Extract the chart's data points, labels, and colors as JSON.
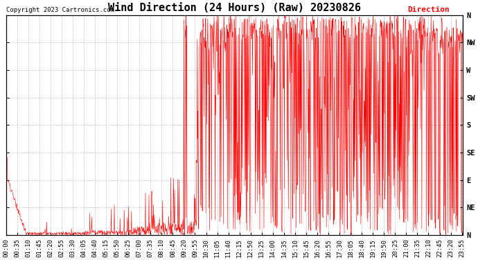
{
  "title": "Wind Direction (24 Hours) (Raw) 20230826",
  "copyright": "Copyright 2023 Cartronics.com",
  "legend_label": "Direction",
  "line_color": "red",
  "background_color": "white",
  "grid_color": "#cccccc",
  "ytick_labels_right": [
    "N",
    "NW",
    "W",
    "SW",
    "S",
    "SE",
    "E",
    "NE",
    "N"
  ],
  "ytick_values": [
    360,
    315,
    270,
    225,
    180,
    135,
    90,
    45,
    0
  ],
  "ymin": 0,
  "ymax": 360,
  "title_fontsize": 11,
  "tick_fontsize": 6.5,
  "copyright_fontsize": 6.5,
  "legend_fontsize": 8
}
